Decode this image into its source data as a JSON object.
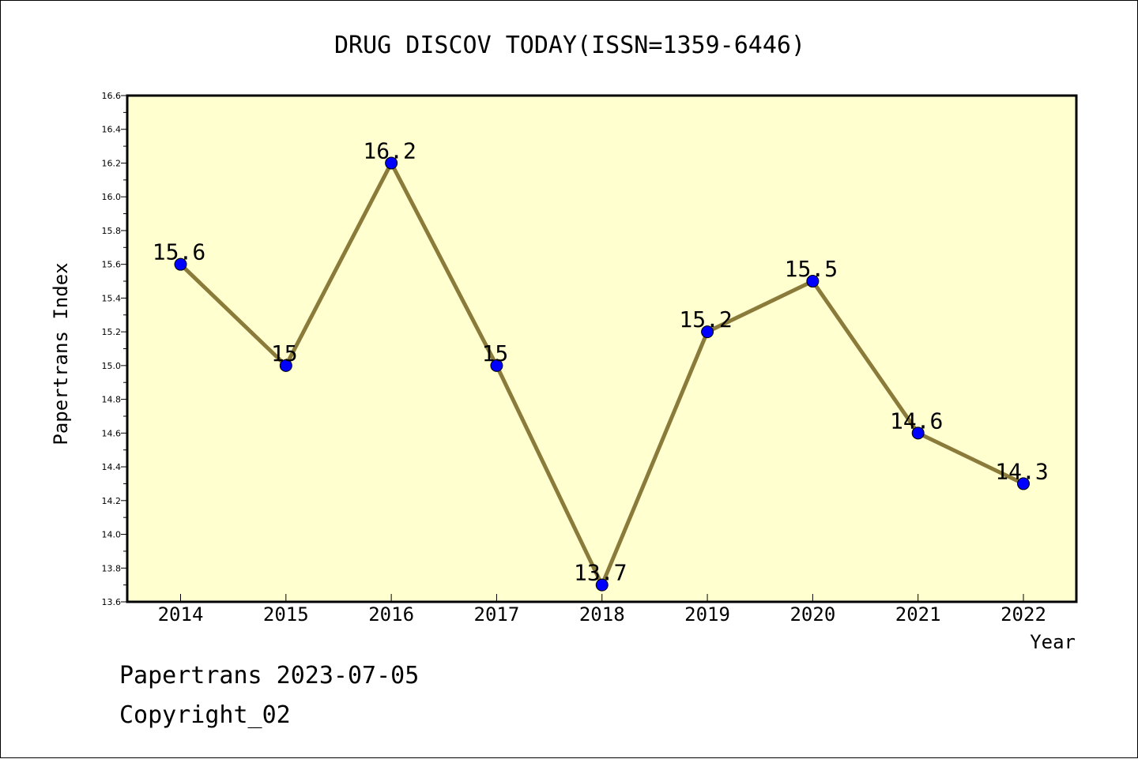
{
  "chart_data": {
    "type": "line",
    "title": "DRUG DISCOV TODAY(ISSN=1359-6446)",
    "xlabel": "Year",
    "ylabel": "Papertrans Index",
    "categories": [
      "2014",
      "2015",
      "2016",
      "2017",
      "2018",
      "2019",
      "2020",
      "2021",
      "2022"
    ],
    "series": [
      {
        "values": [
          15.6,
          15.0,
          16.2,
          15.0,
          13.7,
          15.2,
          15.5,
          14.6,
          14.3
        ],
        "labels": [
          "15.6",
          "15",
          "16.2",
          "15",
          "13.7",
          "15.2",
          "15.5",
          "14.6",
          "14.3"
        ]
      }
    ],
    "ylim": [
      13.6,
      16.6
    ],
    "yticks": [
      "13.6",
      "13.8",
      "14.0",
      "14.2",
      "14.4",
      "14.6",
      "14.8",
      "15.0",
      "15.2",
      "15.4",
      "15.6",
      "15.8",
      "16.0",
      "16.2",
      "16.4",
      "16.6"
    ],
    "grid": false,
    "line_color": "#8B7B3A",
    "marker_color": "#0000FF",
    "plot_background": "#FFFFD0"
  },
  "footer": {
    "line1": "Papertrans 2023-07-05",
    "line2": "Copyright_02"
  }
}
